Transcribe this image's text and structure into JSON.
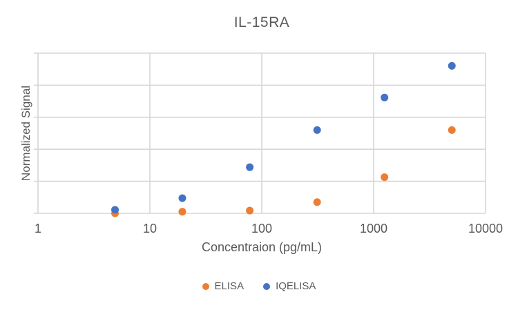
{
  "page": {
    "background": "#ffffff"
  },
  "chart_data": {
    "type": "scatter",
    "title": "IL-15RA",
    "xlabel": "Concentraion (pg/mL)",
    "ylabel": "Normalized Signal",
    "x_scale": "log",
    "xlim": [
      1,
      10000
    ],
    "x_ticks": [
      "1",
      "10",
      "100",
      "1000",
      "10000"
    ],
    "ylim": [
      0,
      1
    ],
    "y_grid_step": 0.2,
    "y_tick_labels_shown": false,
    "grid": "on",
    "legend_position": "bottom",
    "text_color": "#595959",
    "grid_color": "#D6D6D6",
    "series": [
      {
        "name": "ELISA",
        "color": "#ED7D31",
        "points": [
          {
            "x": 4.88,
            "y": 0.0
          },
          {
            "x": 19.5,
            "y": 0.01
          },
          {
            "x": 78.1,
            "y": 0.017
          },
          {
            "x": 312.5,
            "y": 0.07
          },
          {
            "x": 1250,
            "y": 0.226
          },
          {
            "x": 5000,
            "y": 0.52
          }
        ]
      },
      {
        "name": "IQELISA",
        "color": "#4472C4",
        "points": [
          {
            "x": 4.88,
            "y": 0.022
          },
          {
            "x": 19.5,
            "y": 0.095
          },
          {
            "x": 78.1,
            "y": 0.288
          },
          {
            "x": 312.5,
            "y": 0.52
          },
          {
            "x": 1250,
            "y": 0.723
          },
          {
            "x": 5000,
            "y": 0.921
          }
        ]
      }
    ]
  }
}
